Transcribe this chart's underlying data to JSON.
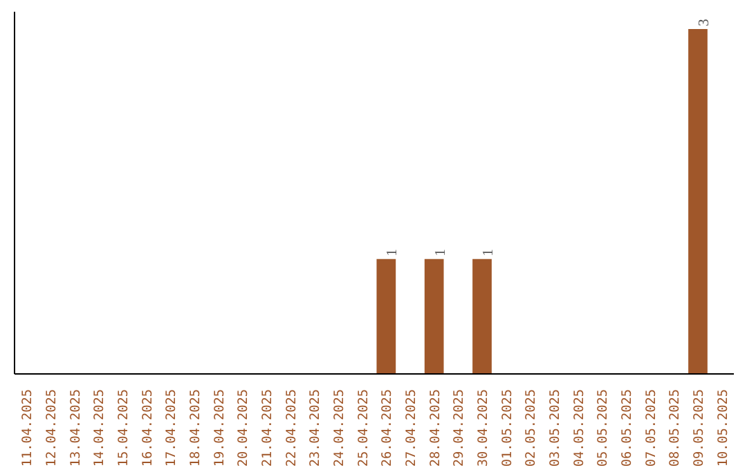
{
  "chart_data": {
    "type": "bar",
    "categories": [
      "11.04.2025",
      "12.04.2025",
      "13.04.2025",
      "14.04.2025",
      "15.04.2025",
      "16.04.2025",
      "17.04.2025",
      "18.04.2025",
      "19.04.2025",
      "20.04.2025",
      "21.04.2025",
      "22.04.2025",
      "23.04.2025",
      "24.04.2025",
      "25.04.2025",
      "26.04.2025",
      "27.04.2025",
      "28.04.2025",
      "29.04.2025",
      "30.04.2025",
      "01.05.2025",
      "02.05.2025",
      "03.05.2025",
      "04.05.2025",
      "05.05.2025",
      "06.05.2025",
      "07.05.2025",
      "08.05.2025",
      "09.05.2025",
      "10.05.2025"
    ],
    "values": [
      null,
      null,
      null,
      null,
      null,
      null,
      null,
      null,
      null,
      null,
      null,
      null,
      null,
      null,
      null,
      1,
      null,
      1,
      null,
      1,
      null,
      null,
      null,
      null,
      null,
      null,
      null,
      null,
      3,
      null
    ],
    "data_labels": true,
    "color": "#a0572a",
    "ylim": [
      0,
      3.15
    ],
    "tick_labels": "x",
    "grid": false
  }
}
